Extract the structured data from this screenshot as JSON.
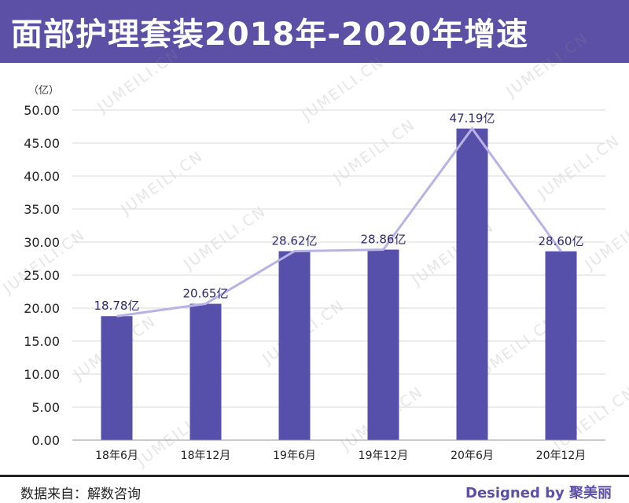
{
  "header": {
    "title": "面部护理套装2018年-2020年增速"
  },
  "unit_label": "（亿）",
  "footer": {
    "source": "数据来自：解数咨询",
    "credit": "Designed by 聚美丽"
  },
  "watermark": "JUMEILI.CN",
  "colors": {
    "header_bg": "#5b4fa6",
    "bar": "#5750ab",
    "line": "#b9b2e6",
    "label": "#2f2a6e"
  },
  "chart_data": {
    "type": "bar",
    "title": "面部护理套装2018年-2020年增速",
    "ylabel": "（亿）",
    "xlabel": "",
    "categories": [
      "18年6月",
      "18年12月",
      "19年6月",
      "19年12月",
      "20年6月",
      "20年12月"
    ],
    "values": [
      18.78,
      20.65,
      28.62,
      28.86,
      47.19,
      28.6
    ],
    "data_labels": [
      "18.78亿",
      "20.65亿",
      "28.62亿",
      "28.86亿",
      "47.19亿",
      "28.60亿"
    ],
    "ylim": [
      0,
      50
    ],
    "yticks": [
      "0.00",
      "5.00",
      "10.00",
      "15.00",
      "20.00",
      "25.00",
      "30.00",
      "35.00",
      "40.00",
      "45.00",
      "50.00"
    ],
    "overlay_line": true,
    "grid": true,
    "legend": "none"
  }
}
